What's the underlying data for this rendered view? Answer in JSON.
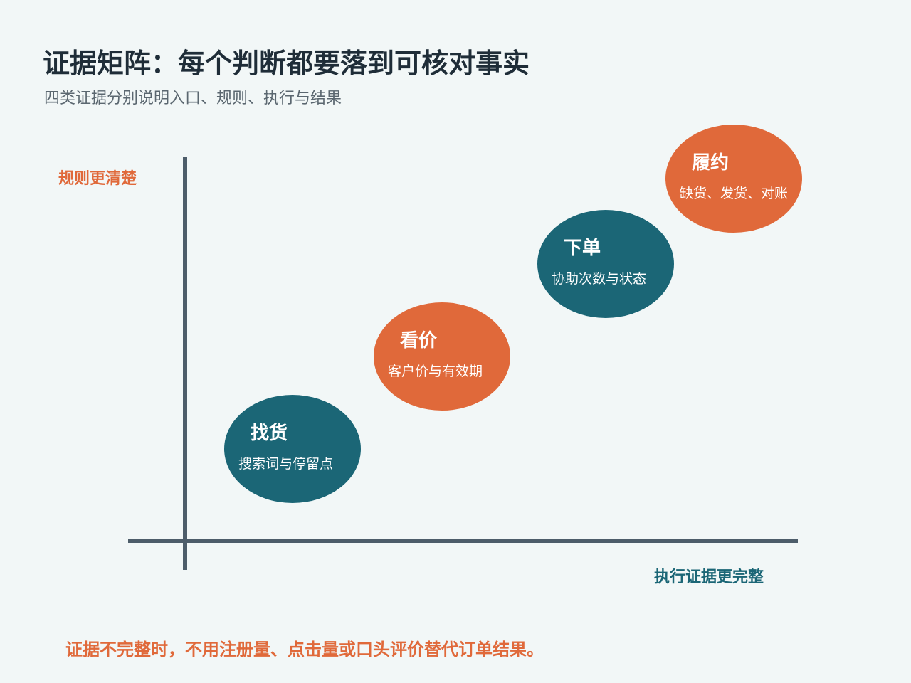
{
  "title": "证据矩阵：每个判断都要落到可核对事实",
  "subtitle": "四类证据分别说明入口、规则、执行与结果",
  "axes": {
    "y_label": "规则更清楚",
    "x_label": "执行证据更完整"
  },
  "bubbles": [
    {
      "title": "找货",
      "desc": "搜索词与停留点"
    },
    {
      "title": "看价",
      "desc": "客户价与有效期"
    },
    {
      "title": "下单",
      "desc": "协助次数与状态"
    },
    {
      "title": "履约",
      "desc": "缺货、发货、对账"
    }
  ],
  "note": "证据不完整时，不用注册量、点击量或口头评价替代订单结果。",
  "colors": {
    "teal": "#1b6676",
    "orange": "#e0693a",
    "title": "#1f2d38",
    "axis": "#4d5d6a"
  }
}
